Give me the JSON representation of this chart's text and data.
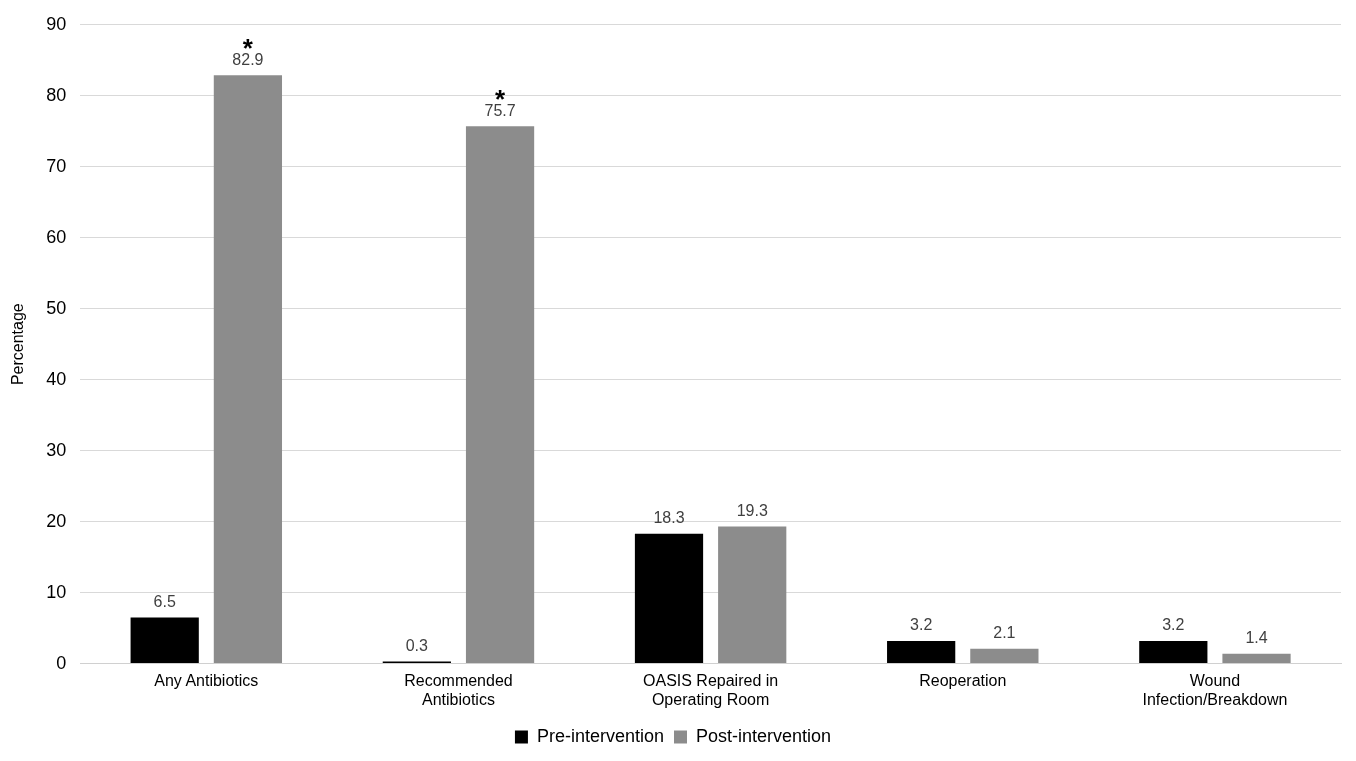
{
  "chart_data": {
    "type": "bar",
    "ylabel": "Percentage",
    "categories": [
      "Any Antibiotics",
      "Recommended Antibiotics",
      "OASIS Repaired in Operating Room",
      "Reoperation",
      "Wound Infection/Breakdown"
    ],
    "series": [
      {
        "name": "Pre-intervention",
        "color": "#000000",
        "values": [
          6.5,
          0.3,
          18.3,
          3.2,
          3.2
        ]
      },
      {
        "name": "Post-intervention",
        "color": "#8c8c8c",
        "values": [
          82.9,
          75.7,
          19.3,
          2.1,
          1.4
        ]
      }
    ],
    "ylim": [
      0,
      90
    ],
    "yticks": [
      0,
      10,
      20,
      30,
      40,
      50,
      60,
      70,
      80,
      90
    ],
    "grid": "y",
    "legend": "bottom",
    "data_labels": true,
    "annotations": [
      "*",
      "*"
    ]
  }
}
